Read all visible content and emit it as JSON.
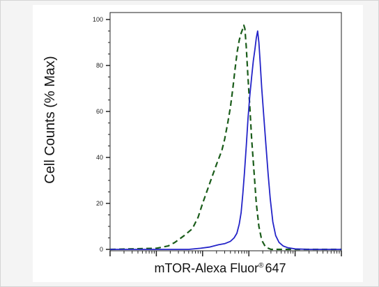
{
  "chart_data": {
    "type": "line",
    "title": "",
    "ylabel": "Cell Counts (% Max)",
    "xlabel": "mTOR-Alexa Fluor",
    "xlabel_super": "®",
    "xlabel_suffix": "647",
    "x_scale": "log",
    "xlim": [
      1,
      100000
    ],
    "ylim": [
      0,
      100
    ],
    "y_ticks": [
      "0",
      "20",
      "40",
      "60",
      "80",
      "100"
    ],
    "x_major_ticks": [
      1,
      10,
      100,
      1000,
      10000,
      100000
    ],
    "grid": false,
    "series": [
      {
        "color": "#1a5c1a",
        "dash": "dashed",
        "points": [
          [
            1,
            0
          ],
          [
            10,
            0.5
          ],
          [
            18,
            1.5
          ],
          [
            25,
            3
          ],
          [
            40,
            6
          ],
          [
            60,
            9
          ],
          [
            80,
            14
          ],
          [
            100,
            20
          ],
          [
            150,
            30
          ],
          [
            200,
            37
          ],
          [
            260,
            43
          ],
          [
            300,
            48
          ],
          [
            350,
            55
          ],
          [
            400,
            62
          ],
          [
            450,
            70
          ],
          [
            500,
            78
          ],
          [
            560,
            86
          ],
          [
            620,
            91
          ],
          [
            680,
            94
          ],
          [
            740,
            96
          ],
          [
            780,
            97.5
          ],
          [
            820,
            96
          ],
          [
            880,
            88
          ],
          [
            950,
            76
          ],
          [
            1050,
            62
          ],
          [
            1150,
            48
          ],
          [
            1300,
            33
          ],
          [
            1450,
            20
          ],
          [
            1650,
            10
          ],
          [
            1900,
            4
          ],
          [
            2300,
            1
          ],
          [
            3000,
            0
          ],
          [
            100000,
            0
          ]
        ]
      },
      {
        "color": "#2323c8",
        "dash": "solid",
        "points": [
          [
            1,
            0
          ],
          [
            50,
            0
          ],
          [
            90,
            0.5
          ],
          [
            140,
            1
          ],
          [
            220,
            2
          ],
          [
            300,
            2.5
          ],
          [
            400,
            3.5
          ],
          [
            480,
            5
          ],
          [
            550,
            7
          ],
          [
            620,
            11
          ],
          [
            680,
            16
          ],
          [
            740,
            24
          ],
          [
            800,
            33
          ],
          [
            880,
            45
          ],
          [
            960,
            57
          ],
          [
            1050,
            67
          ],
          [
            1150,
            75
          ],
          [
            1250,
            82
          ],
          [
            1350,
            87
          ],
          [
            1450,
            92
          ],
          [
            1550,
            95
          ],
          [
            1650,
            90
          ],
          [
            1750,
            82
          ],
          [
            1900,
            70
          ],
          [
            2100,
            58
          ],
          [
            2350,
            45
          ],
          [
            2600,
            33
          ],
          [
            2900,
            22
          ],
          [
            3300,
            12
          ],
          [
            3800,
            6
          ],
          [
            4500,
            3
          ],
          [
            5500,
            1.5
          ],
          [
            7000,
            0.7
          ],
          [
            10000,
            0.2
          ],
          [
            20000,
            0
          ],
          [
            100000,
            0
          ]
        ]
      }
    ]
  }
}
